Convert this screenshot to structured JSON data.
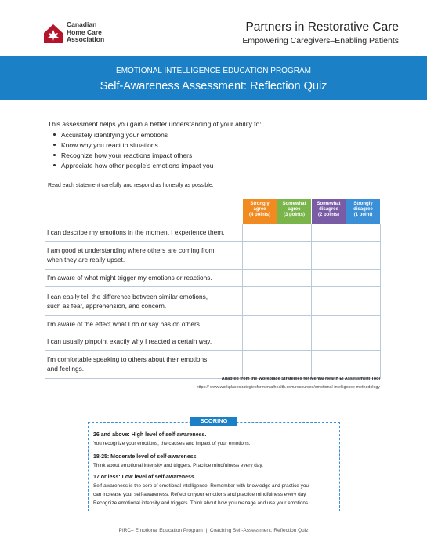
{
  "header": {
    "org_name": [
      "Canadian",
      "Home Care",
      "Association"
    ],
    "title": "Partners in Restorative Care",
    "subtitle": "Empowering Caregivers–Enabling Patients"
  },
  "banner": {
    "program": "EMOTIONAL INTELLIGENCE EDUCATION PROGRAM",
    "title": "Self-Awareness Assessment: Reflection Quiz"
  },
  "intro": {
    "lead": "This assessment helps you gain a better understanding of your ability to:",
    "bullets": [
      "Accurately identifying your emotions",
      "Know why you react to situations",
      "Recognize how your reactions impact others",
      "Appreciate how other people’s emotions impact you"
    ],
    "instruction": "Read each statement carefully and respond as honestly as possible."
  },
  "table": {
    "columns": [
      {
        "label": [
          "Strongly",
          "agree"
        ],
        "points": "(4 points)",
        "color": "#f18a21"
      },
      {
        "label": [
          "Somewhat",
          "agree"
        ],
        "points": "(3 points)",
        "color": "#79b54a"
      },
      {
        "label": [
          "Somewhat",
          "disagree"
        ],
        "points": "(2 points)",
        "color": "#7a5ba6"
      },
      {
        "label": [
          "Strongly",
          "disagree"
        ],
        "points": "(1 point)",
        "color": "#3b8fd6"
      }
    ],
    "rows": [
      [
        "I can describe my emotions in the moment I experience them."
      ],
      [
        "I am good at understanding where others are coming from",
        "when they are really upset."
      ],
      [
        "I’m aware of what might trigger my emotions or reactions."
      ],
      [
        "I can easily tell the difference between similar emotions,",
        "such as fear, apprehension, and concern."
      ],
      [
        "I’m aware of the effect what I do or say has on others."
      ],
      [
        "I can usually pinpoint exactly why I reacted a certain way."
      ],
      [
        "I’m comfortable speaking to others about their emotions",
        "and feelings."
      ]
    ]
  },
  "source": {
    "credit": "Adapted from the Workplace Strategies for Mental Health EI Assessment Tool",
    "url": "https:// www.workplacestrategiesformentalhealth.com/resources/emotional-intelligence-methodology"
  },
  "scoring": {
    "title": "SCORING",
    "items": [
      {
        "heading": "26 and above: High level of self-awareness.",
        "text": [
          "You recognize your emotions, the causes and impact of your emotions."
        ]
      },
      {
        "heading": "18-25: Moderate level of self-awareness.",
        "text": [
          "Think about emotional intensity and triggers.  Practice mindfulness every day."
        ]
      },
      {
        "heading": "17 or less: Low level of self-awareness.",
        "text": [
          "Self-awareness is the core of emotional intelligence. Remember with knowledge and practice you",
          "can increase your self-awareness.  Reflect on your emotions and practice mindfulness every day.",
          "Recognize emotional intensity and triggers. Think about how you manage and use your emotions."
        ]
      }
    ]
  },
  "footer": "PIRC– Emotional Education Program  |  Coaching Self-Assessment: Reflection Quiz"
}
